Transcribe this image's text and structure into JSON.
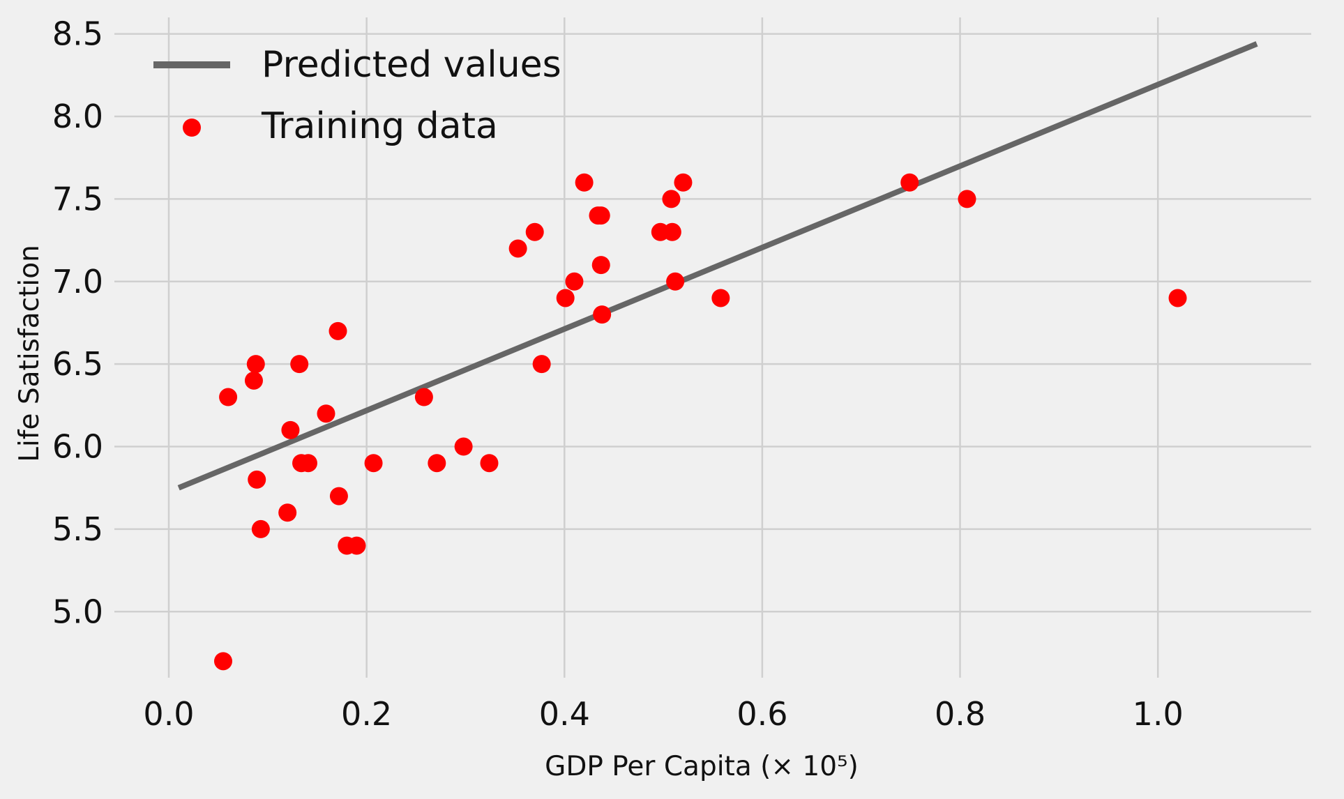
{
  "chart_data": {
    "type": "scatter",
    "title": "",
    "xlabel": "GDP Per Capita (× 10⁵)",
    "ylabel": "Life Satisfaction",
    "xlim": [
      -0.055,
      1.155
    ],
    "ylim": [
      4.6,
      8.6
    ],
    "xticks": [
      0.0,
      0.2,
      0.4,
      0.6,
      0.8,
      1.0
    ],
    "xtick_labels": [
      "0.0",
      "0.2",
      "0.4",
      "0.6",
      "0.8",
      "1.0"
    ],
    "yticks": [
      5.0,
      5.5,
      6.0,
      6.5,
      7.0,
      7.5,
      8.0,
      8.5
    ],
    "ytick_labels": [
      "5.0",
      "5.5",
      "6.0",
      "6.5",
      "7.0",
      "7.5",
      "8.0",
      "8.5"
    ],
    "grid": true,
    "legend": {
      "position": "top-left",
      "entries": [
        "Predicted values",
        "Training data"
      ]
    },
    "colors": {
      "line": "#666666",
      "points": "#ff0000",
      "background": "#f0f0f0",
      "grid": "#cfcfcf"
    },
    "series": [
      {
        "name": "Predicted values",
        "type": "line",
        "x": [
          0.01,
          1.1
        ],
        "y": [
          5.75,
          8.44
        ]
      },
      {
        "name": "Training data",
        "type": "scatter",
        "x": [
          0.055,
          0.06,
          0.086,
          0.088,
          0.089,
          0.093,
          0.12,
          0.123,
          0.132,
          0.134,
          0.141,
          0.159,
          0.171,
          0.172,
          0.18,
          0.19,
          0.207,
          0.258,
          0.271,
          0.298,
          0.324,
          0.353,
          0.37,
          0.377,
          0.401,
          0.41,
          0.42,
          0.434,
          0.437,
          0.437,
          0.438,
          0.497,
          0.508,
          0.509,
          0.512,
          0.52,
          0.558,
          0.749,
          0.807,
          1.02
        ],
        "y": [
          4.7,
          6.3,
          6.4,
          6.5,
          5.8,
          5.5,
          5.6,
          6.1,
          6.5,
          5.9,
          5.9,
          6.2,
          6.7,
          5.7,
          5.4,
          5.4,
          5.9,
          6.3,
          5.9,
          6.0,
          5.9,
          7.2,
          7.3,
          6.5,
          6.9,
          7.0,
          7.6,
          7.4,
          7.4,
          7.1,
          6.8,
          7.3,
          7.5,
          7.3,
          7.0,
          7.6,
          6.9,
          7.6,
          7.5,
          6.9
        ]
      }
    ]
  }
}
